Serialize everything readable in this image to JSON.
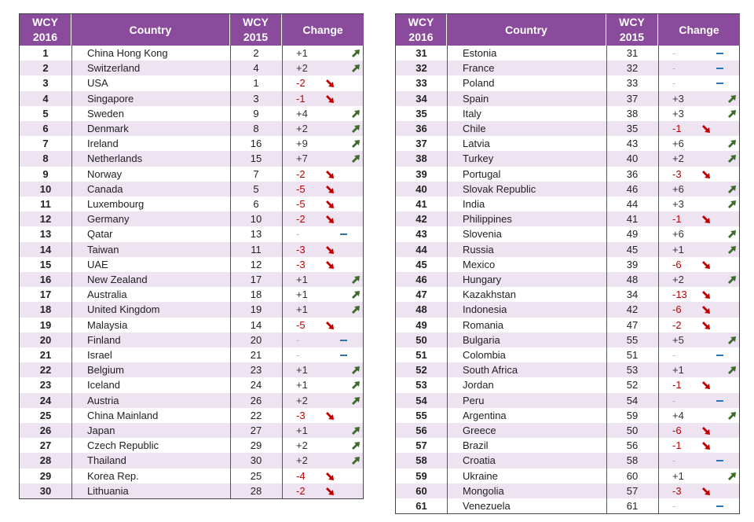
{
  "tables": [
    {
      "header": [
        "WCY\n2016",
        "Country",
        "WCY\n2015",
        "Change"
      ],
      "rows": [
        [
          1,
          "China Hong Kong",
          2,
          "+1"
        ],
        [
          2,
          "Switzerland",
          4,
          "+2"
        ],
        [
          3,
          "USA",
          1,
          "-2"
        ],
        [
          4,
          "Singapore",
          3,
          "-1"
        ],
        [
          5,
          "Sweden",
          9,
          "+4"
        ],
        [
          6,
          "Denmark",
          8,
          "+2"
        ],
        [
          7,
          "Ireland",
          16,
          "+9"
        ],
        [
          8,
          "Netherlands",
          15,
          "+7"
        ],
        [
          9,
          "Norway",
          7,
          "-2"
        ],
        [
          10,
          "Canada",
          5,
          "-5"
        ],
        [
          11,
          "Luxembourg",
          6,
          "-5"
        ],
        [
          12,
          "Germany",
          10,
          "-2"
        ],
        [
          13,
          "Qatar",
          13,
          "-"
        ],
        [
          14,
          "Taiwan",
          11,
          "-3"
        ],
        [
          15,
          "UAE",
          12,
          "-3"
        ],
        [
          16,
          "New Zealand",
          17,
          "+1"
        ],
        [
          17,
          "Australia",
          18,
          "+1"
        ],
        [
          18,
          "United Kingdom",
          19,
          "+1"
        ],
        [
          19,
          "Malaysia",
          14,
          "-5"
        ],
        [
          20,
          "Finland",
          20,
          "-"
        ],
        [
          21,
          "Israel",
          21,
          "-"
        ],
        [
          22,
          "Belgium",
          23,
          "+1"
        ],
        [
          23,
          "Iceland",
          24,
          "+1"
        ],
        [
          24,
          "Austria",
          26,
          "+2"
        ],
        [
          25,
          "China Mainland",
          22,
          "-3"
        ],
        [
          26,
          "Japan",
          27,
          "+1"
        ],
        [
          27,
          "Czech Republic",
          29,
          "+2"
        ],
        [
          28,
          "Thailand",
          30,
          "+2"
        ],
        [
          29,
          "Korea Rep.",
          25,
          "-4"
        ],
        [
          30,
          "Lithuania",
          28,
          "-2"
        ]
      ]
    },
    {
      "header": [
        "WCY\n2016",
        "Country",
        "WCY\n2015",
        "Change"
      ],
      "rows": [
        [
          31,
          "Estonia",
          31,
          "-"
        ],
        [
          32,
          "France",
          32,
          "-"
        ],
        [
          33,
          "Poland",
          33,
          "-"
        ],
        [
          34,
          "Spain",
          37,
          "+3"
        ],
        [
          35,
          "Italy",
          38,
          "+3"
        ],
        [
          36,
          "Chile",
          35,
          "-1"
        ],
        [
          37,
          "Latvia",
          43,
          "+6"
        ],
        [
          38,
          "Turkey",
          40,
          "+2"
        ],
        [
          39,
          "Portugal",
          36,
          "-3"
        ],
        [
          40,
          "Slovak Republic",
          46,
          "+6"
        ],
        [
          41,
          "India",
          44,
          "+3"
        ],
        [
          42,
          "Philippines",
          41,
          "-1"
        ],
        [
          43,
          "Slovenia",
          49,
          "+6"
        ],
        [
          44,
          "Russia",
          45,
          "+1"
        ],
        [
          45,
          "Mexico",
          39,
          "-6"
        ],
        [
          46,
          "Hungary",
          48,
          "+2"
        ],
        [
          47,
          "Kazakhstan",
          34,
          "-13"
        ],
        [
          48,
          "Indonesia",
          42,
          "-6"
        ],
        [
          49,
          "Romania",
          47,
          "-2"
        ],
        [
          50,
          "Bulgaria",
          55,
          "+5"
        ],
        [
          51,
          "Colombia",
          51,
          "-"
        ],
        [
          52,
          "South Africa",
          53,
          "+1"
        ],
        [
          53,
          "Jordan",
          52,
          "-1"
        ],
        [
          54,
          "Peru",
          54,
          "-"
        ],
        [
          55,
          "Argentina",
          59,
          "+4"
        ],
        [
          56,
          "Greece",
          50,
          "-6"
        ],
        [
          57,
          "Brazil",
          56,
          "-1"
        ],
        [
          58,
          "Croatia",
          58,
          "-"
        ],
        [
          59,
          "Ukraine",
          60,
          "+1"
        ],
        [
          60,
          "Mongolia",
          57,
          "-3"
        ],
        [
          61,
          "Venezuela",
          61,
          "-"
        ]
      ]
    }
  ]
}
